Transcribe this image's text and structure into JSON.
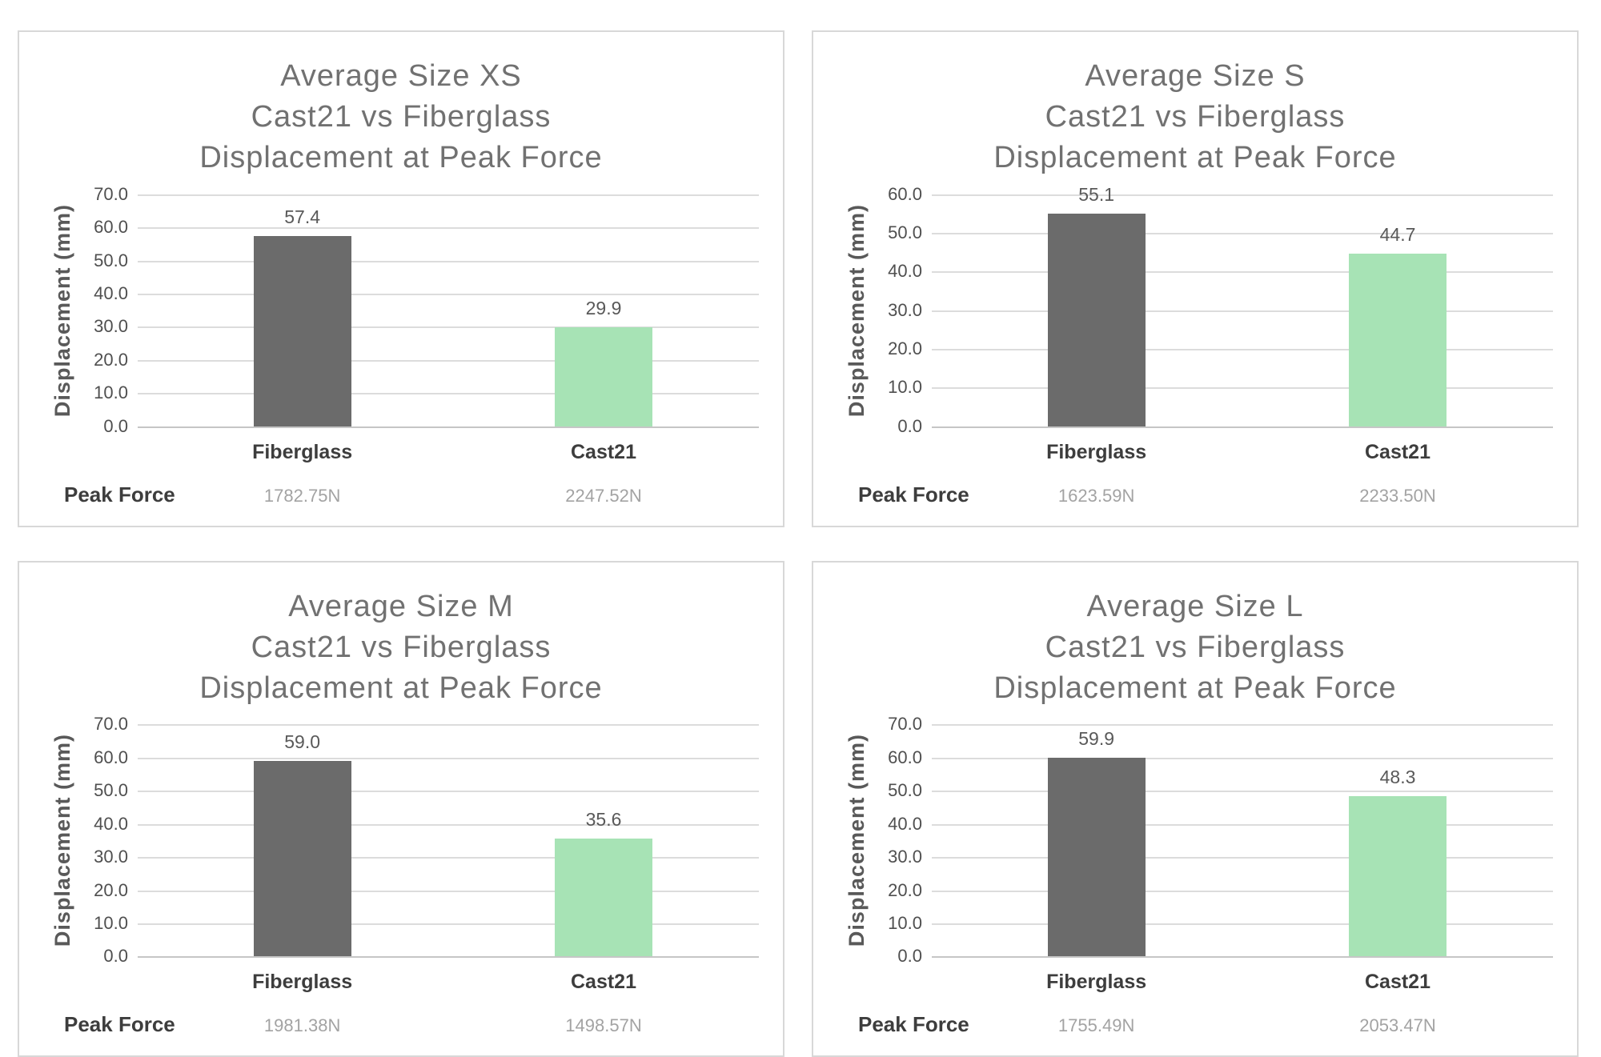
{
  "page": {
    "background": "#ffffff"
  },
  "colors": {
    "fiberglass_bar": "#6b6b6b",
    "cast21_bar": "#a7e3b5",
    "gridline": "#dcdcdc",
    "axis_line": "#c6c6c6",
    "title_text": "#717171",
    "tick_text": "#4f4f4f",
    "category_text": "#3d3d3d",
    "value_text": "#595959",
    "peak_value_text": "#a3a3a3",
    "panel_border": "#d8d8d8"
  },
  "chart_data": {
    "type": "bar",
    "grid": true,
    "legend_position": "none",
    "charts": [
      {
        "id": "xs",
        "title_lines": [
          "Average Size XS",
          "Cast21 vs Fiberglass",
          "Displacement at Peak Force"
        ],
        "ylabel": "Displacement (mm)",
        "ylim": [
          0,
          70
        ],
        "ytick_step": 10,
        "ytick_labels": [
          "70.0",
          "60.0",
          "50.0",
          "40.0",
          "30.0",
          "20.0",
          "10.0",
          "0.0"
        ],
        "categories": [
          "Fiberglass",
          "Cast21"
        ],
        "values": [
          57.4,
          29.9
        ],
        "value_labels": [
          "57.4",
          "29.9"
        ],
        "peak_force_label": "Peak Force",
        "peak_forces": [
          "1782.75N",
          "2247.52N"
        ]
      },
      {
        "id": "s",
        "title_lines": [
          "Average Size S",
          "Cast21 vs Fiberglass",
          "Displacement at Peak Force"
        ],
        "ylabel": "Displacement (mm)",
        "ylim": [
          0,
          60
        ],
        "ytick_step": 10,
        "ytick_labels": [
          "60.0",
          "50.0",
          "40.0",
          "30.0",
          "20.0",
          "10.0",
          "0.0"
        ],
        "categories": [
          "Fiberglass",
          "Cast21"
        ],
        "values": [
          55.1,
          44.7
        ],
        "value_labels": [
          "55.1",
          "44.7"
        ],
        "peak_force_label": "Peak Force",
        "peak_forces": [
          "1623.59N",
          "2233.50N"
        ]
      },
      {
        "id": "m",
        "title_lines": [
          "Average Size M",
          "Cast21 vs Fiberglass",
          "Displacement at Peak Force"
        ],
        "ylabel": "Displacement (mm)",
        "ylim": [
          0,
          70
        ],
        "ytick_step": 10,
        "ytick_labels": [
          "70.0",
          "60.0",
          "50.0",
          "40.0",
          "30.0",
          "20.0",
          "10.0",
          "0.0"
        ],
        "categories": [
          "Fiberglass",
          "Cast21"
        ],
        "values": [
          59.0,
          35.6
        ],
        "value_labels": [
          "59.0",
          "35.6"
        ],
        "peak_force_label": "Peak Force",
        "peak_forces": [
          "1981.38N",
          "1498.57N"
        ]
      },
      {
        "id": "l",
        "title_lines": [
          "Average Size L",
          "Cast21 vs Fiberglass",
          "Displacement at Peak Force"
        ],
        "ylabel": "Displacement (mm)",
        "ylim": [
          0,
          70
        ],
        "ytick_step": 10,
        "ytick_labels": [
          "70.0",
          "60.0",
          "50.0",
          "40.0",
          "30.0",
          "20.0",
          "10.0",
          "0.0"
        ],
        "categories": [
          "Fiberglass",
          "Cast21"
        ],
        "values": [
          59.9,
          48.3
        ],
        "value_labels": [
          "59.9",
          "48.3"
        ],
        "peak_force_label": "Peak Force",
        "peak_forces": [
          "1755.49N",
          "2053.47N"
        ]
      }
    ]
  }
}
